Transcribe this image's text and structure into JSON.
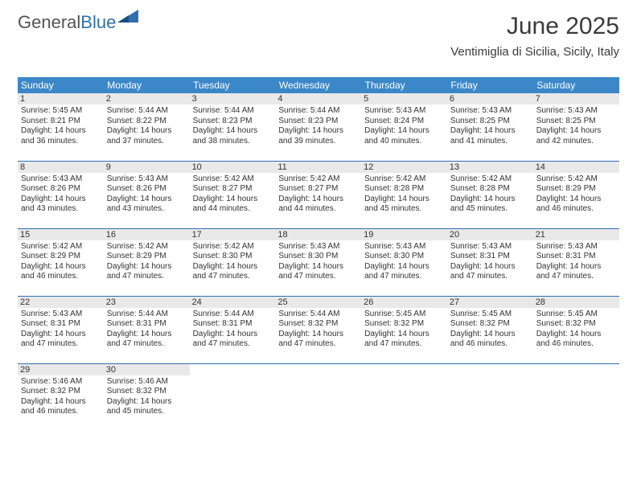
{
  "brand": {
    "part1": "General",
    "part2": "Blue"
  },
  "colors": {
    "brand_gray": "#545454",
    "brand_blue": "#2f6fb0",
    "header_blue": "#3b87c8",
    "daynum_bg": "#e9e9e9",
    "text": "#333333",
    "rule": "#2f6fb0",
    "background": "#ffffff"
  },
  "title": "June 2025",
  "location": "Ventimiglia di Sicilia, Sicily, Italy",
  "weekdays": [
    "Sunday",
    "Monday",
    "Tuesday",
    "Wednesday",
    "Thursday",
    "Friday",
    "Saturday"
  ],
  "weeks": [
    [
      {
        "d": "1",
        "sr": "Sunrise: 5:45 AM",
        "ss": "Sunset: 8:21 PM",
        "dl1": "Daylight: 14 hours",
        "dl2": "and 36 minutes."
      },
      {
        "d": "2",
        "sr": "Sunrise: 5:44 AM",
        "ss": "Sunset: 8:22 PM",
        "dl1": "Daylight: 14 hours",
        "dl2": "and 37 minutes."
      },
      {
        "d": "3",
        "sr": "Sunrise: 5:44 AM",
        "ss": "Sunset: 8:23 PM",
        "dl1": "Daylight: 14 hours",
        "dl2": "and 38 minutes."
      },
      {
        "d": "4",
        "sr": "Sunrise: 5:44 AM",
        "ss": "Sunset: 8:23 PM",
        "dl1": "Daylight: 14 hours",
        "dl2": "and 39 minutes."
      },
      {
        "d": "5",
        "sr": "Sunrise: 5:43 AM",
        "ss": "Sunset: 8:24 PM",
        "dl1": "Daylight: 14 hours",
        "dl2": "and 40 minutes."
      },
      {
        "d": "6",
        "sr": "Sunrise: 5:43 AM",
        "ss": "Sunset: 8:25 PM",
        "dl1": "Daylight: 14 hours",
        "dl2": "and 41 minutes."
      },
      {
        "d": "7",
        "sr": "Sunrise: 5:43 AM",
        "ss": "Sunset: 8:25 PM",
        "dl1": "Daylight: 14 hours",
        "dl2": "and 42 minutes."
      }
    ],
    [
      {
        "d": "8",
        "sr": "Sunrise: 5:43 AM",
        "ss": "Sunset: 8:26 PM",
        "dl1": "Daylight: 14 hours",
        "dl2": "and 43 minutes."
      },
      {
        "d": "9",
        "sr": "Sunrise: 5:43 AM",
        "ss": "Sunset: 8:26 PM",
        "dl1": "Daylight: 14 hours",
        "dl2": "and 43 minutes."
      },
      {
        "d": "10",
        "sr": "Sunrise: 5:42 AM",
        "ss": "Sunset: 8:27 PM",
        "dl1": "Daylight: 14 hours",
        "dl2": "and 44 minutes."
      },
      {
        "d": "11",
        "sr": "Sunrise: 5:42 AM",
        "ss": "Sunset: 8:27 PM",
        "dl1": "Daylight: 14 hours",
        "dl2": "and 44 minutes."
      },
      {
        "d": "12",
        "sr": "Sunrise: 5:42 AM",
        "ss": "Sunset: 8:28 PM",
        "dl1": "Daylight: 14 hours",
        "dl2": "and 45 minutes."
      },
      {
        "d": "13",
        "sr": "Sunrise: 5:42 AM",
        "ss": "Sunset: 8:28 PM",
        "dl1": "Daylight: 14 hours",
        "dl2": "and 45 minutes."
      },
      {
        "d": "14",
        "sr": "Sunrise: 5:42 AM",
        "ss": "Sunset: 8:29 PM",
        "dl1": "Daylight: 14 hours",
        "dl2": "and 46 minutes."
      }
    ],
    [
      {
        "d": "15",
        "sr": "Sunrise: 5:42 AM",
        "ss": "Sunset: 8:29 PM",
        "dl1": "Daylight: 14 hours",
        "dl2": "and 46 minutes."
      },
      {
        "d": "16",
        "sr": "Sunrise: 5:42 AM",
        "ss": "Sunset: 8:29 PM",
        "dl1": "Daylight: 14 hours",
        "dl2": "and 47 minutes."
      },
      {
        "d": "17",
        "sr": "Sunrise: 5:42 AM",
        "ss": "Sunset: 8:30 PM",
        "dl1": "Daylight: 14 hours",
        "dl2": "and 47 minutes."
      },
      {
        "d": "18",
        "sr": "Sunrise: 5:43 AM",
        "ss": "Sunset: 8:30 PM",
        "dl1": "Daylight: 14 hours",
        "dl2": "and 47 minutes."
      },
      {
        "d": "19",
        "sr": "Sunrise: 5:43 AM",
        "ss": "Sunset: 8:30 PM",
        "dl1": "Daylight: 14 hours",
        "dl2": "and 47 minutes."
      },
      {
        "d": "20",
        "sr": "Sunrise: 5:43 AM",
        "ss": "Sunset: 8:31 PM",
        "dl1": "Daylight: 14 hours",
        "dl2": "and 47 minutes."
      },
      {
        "d": "21",
        "sr": "Sunrise: 5:43 AM",
        "ss": "Sunset: 8:31 PM",
        "dl1": "Daylight: 14 hours",
        "dl2": "and 47 minutes."
      }
    ],
    [
      {
        "d": "22",
        "sr": "Sunrise: 5:43 AM",
        "ss": "Sunset: 8:31 PM",
        "dl1": "Daylight: 14 hours",
        "dl2": "and 47 minutes."
      },
      {
        "d": "23",
        "sr": "Sunrise: 5:44 AM",
        "ss": "Sunset: 8:31 PM",
        "dl1": "Daylight: 14 hours",
        "dl2": "and 47 minutes."
      },
      {
        "d": "24",
        "sr": "Sunrise: 5:44 AM",
        "ss": "Sunset: 8:31 PM",
        "dl1": "Daylight: 14 hours",
        "dl2": "and 47 minutes."
      },
      {
        "d": "25",
        "sr": "Sunrise: 5:44 AM",
        "ss": "Sunset: 8:32 PM",
        "dl1": "Daylight: 14 hours",
        "dl2": "and 47 minutes."
      },
      {
        "d": "26",
        "sr": "Sunrise: 5:45 AM",
        "ss": "Sunset: 8:32 PM",
        "dl1": "Daylight: 14 hours",
        "dl2": "and 47 minutes."
      },
      {
        "d": "27",
        "sr": "Sunrise: 5:45 AM",
        "ss": "Sunset: 8:32 PM",
        "dl1": "Daylight: 14 hours",
        "dl2": "and 46 minutes."
      },
      {
        "d": "28",
        "sr": "Sunrise: 5:45 AM",
        "ss": "Sunset: 8:32 PM",
        "dl1": "Daylight: 14 hours",
        "dl2": "and 46 minutes."
      }
    ],
    [
      {
        "d": "29",
        "sr": "Sunrise: 5:46 AM",
        "ss": "Sunset: 8:32 PM",
        "dl1": "Daylight: 14 hours",
        "dl2": "and 46 minutes."
      },
      {
        "d": "30",
        "sr": "Sunrise: 5:46 AM",
        "ss": "Sunset: 8:32 PM",
        "dl1": "Daylight: 14 hours",
        "dl2": "and 45 minutes."
      },
      null,
      null,
      null,
      null,
      null
    ]
  ]
}
